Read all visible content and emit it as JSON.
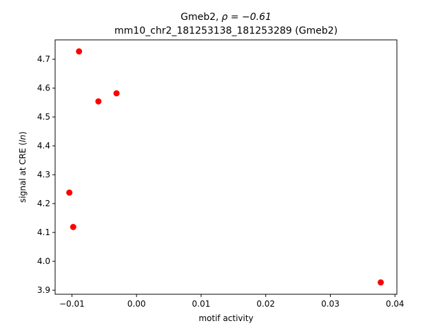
{
  "chart_data": {
    "type": "scatter",
    "title_gene": "Gmeb2,",
    "title_rho": "ρ = −0.61",
    "subtitle": "mm10_chr2_181253138_181253289 (Gmeb2)",
    "xlabel": "motif activity",
    "ylabel_prefix": "signal at CRE (",
    "ylabel_italic": "ln",
    "ylabel_suffix": ")",
    "xlim": [
      -0.0126,
      0.0403
    ],
    "ylim": [
      3.886,
      4.767
    ],
    "xticks": [
      -0.01,
      0.0,
      0.01,
      0.02,
      0.03,
      0.04
    ],
    "xtick_labels": [
      "−0.01",
      "0.00",
      "0.01",
      "0.02",
      "0.03",
      "0.04"
    ],
    "yticks": [
      3.9,
      4.0,
      4.1,
      4.2,
      4.3,
      4.4,
      4.5,
      4.6,
      4.7
    ],
    "ytick_labels": [
      "3.9",
      "4.0",
      "4.1",
      "4.2",
      "4.3",
      "4.4",
      "4.5",
      "4.6",
      "4.7"
    ],
    "marker_color": "#ff0000",
    "grid": false,
    "points": [
      {
        "x": -0.0089,
        "y": 4.727
      },
      {
        "x": -0.0059,
        "y": 4.554
      },
      {
        "x": -0.0031,
        "y": 4.582
      },
      {
        "x": -0.0104,
        "y": 4.238
      },
      {
        "x": -0.0098,
        "y": 4.119
      },
      {
        "x": 0.0378,
        "y": 3.927
      }
    ]
  }
}
